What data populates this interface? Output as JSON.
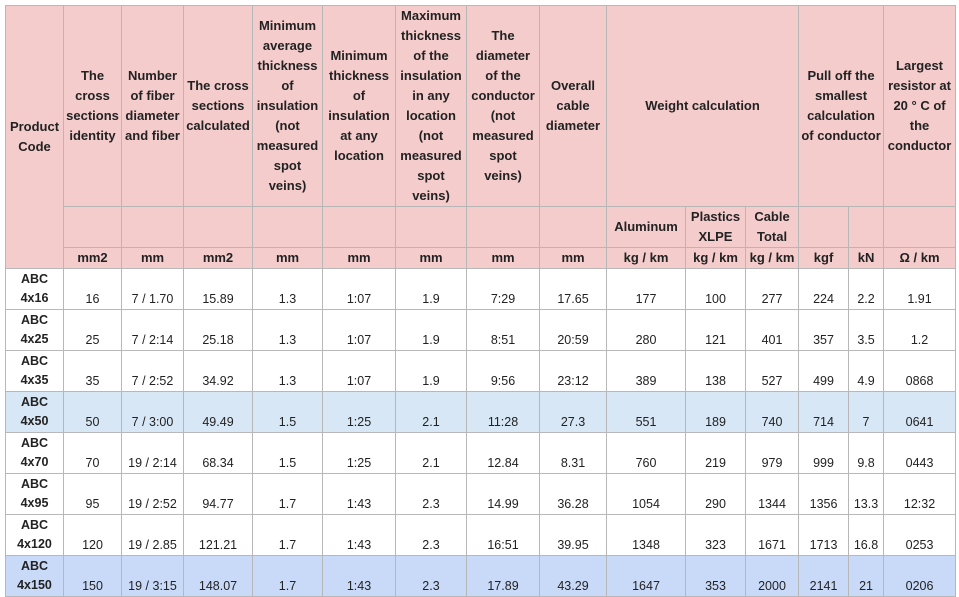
{
  "header": {
    "product_code": "Product Code",
    "columns": [
      "The cross sections identity",
      "Number of fiber diameter and fiber",
      "The cross sections calculated",
      "Minimum average thickness of insulation (not measured spot veins)",
      "Minimum thickness of insulation at any location",
      "Maximum thickness of the insulation in any location (not measured spot veins)",
      "The diameter of the conductor (not measured spot veins)",
      "Overall cable diameter"
    ],
    "weight_group": "Weight calculation",
    "weight_columns": [
      "Aluminum",
      "Plastics XLPE",
      "Cable Total"
    ],
    "pull_group": "Pull off the smallest calculation of conductor",
    "resistor": "Largest resistor at 20 ° C of the conductor",
    "units": [
      "mm2",
      "mm",
      "mm2",
      "mm",
      "mm",
      "mm",
      "mm",
      "mm",
      "kg / km",
      "kg / km",
      "kg / km",
      "kgf",
      "kN",
      "Ω / km"
    ]
  },
  "rows": [
    [
      "ABC 4x16",
      "16",
      "7 / 1.70",
      "15.89",
      "1.3",
      "1:07",
      "1.9",
      "7:29",
      "17.65",
      "177",
      "100",
      "277",
      "224",
      "2.2",
      "1.91"
    ],
    [
      "ABC 4x25",
      "25",
      "7 / 2:14",
      "25.18",
      "1.3",
      "1:07",
      "1.9",
      "8:51",
      "20:59",
      "280",
      "121",
      "401",
      "357",
      "3.5",
      "1.2"
    ],
    [
      "ABC 4x35",
      "35",
      "7 / 2:52",
      "34.92",
      "1.3",
      "1:07",
      "1.9",
      "9:56",
      "23:12",
      "389",
      "138",
      "527",
      "499",
      "4.9",
      "0868"
    ],
    [
      "ABC 4x50",
      "50",
      "7 / 3:00",
      "49.49",
      "1.5",
      "1:25",
      "2.1",
      "11:28",
      "27.3",
      "551",
      "189",
      "740",
      "714",
      "7",
      "0641"
    ],
    [
      "ABC 4x70",
      "70",
      "19 / 2:14",
      "68.34",
      "1.5",
      "1:25",
      "2.1",
      "12.84",
      "8.31",
      "760",
      "219",
      "979",
      "999",
      "9.8",
      "0443"
    ],
    [
      "ABC 4x95",
      "95",
      "19 / 2:52",
      "94.77",
      "1.7",
      "1:43",
      "2.3",
      "14.99",
      "36.28",
      "1054",
      "290",
      "1344",
      "1356",
      "13.3",
      "12:32"
    ],
    [
      "ABC 4x120",
      "120",
      "19 / 2.85",
      "121.21",
      "1.7",
      "1:43",
      "2.3",
      "16:51",
      "39.95",
      "1348",
      "323",
      "1671",
      "1713",
      "16.8",
      "0253"
    ],
    [
      "ABC 4x150",
      "150",
      "19 / 3:15",
      "148.07",
      "1.7",
      "1:43",
      "2.3",
      "17.89",
      "43.29",
      "1647",
      "353",
      "2000",
      "2141",
      "21",
      "0206"
    ]
  ]
}
